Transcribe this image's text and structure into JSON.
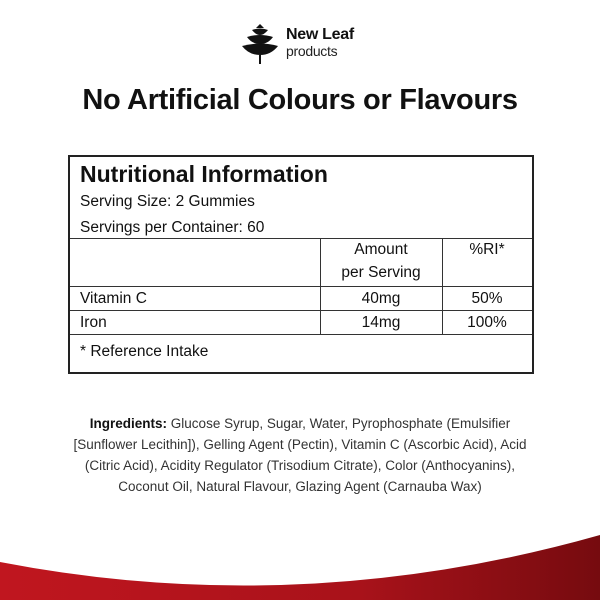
{
  "brand": {
    "name": "New Leaf",
    "sub": "products",
    "icon": "leaf-tree-icon"
  },
  "headline": "No Artificial Colours or Flavours",
  "nutrition": {
    "title": "Nutritional Information",
    "serving_size": "Serving Size: 2 Gummies",
    "servings_per_container": "Servings per Container: 60",
    "columns": [
      "Amount",
      "per Serving",
      "%RI*"
    ],
    "rows": [
      {
        "name": "Vitamin C",
        "amount": "40mg",
        "ri": "50%"
      },
      {
        "name": "Iron",
        "amount": "14mg",
        "ri": "100%"
      }
    ],
    "footnote": "* Reference Intake"
  },
  "ingredients": {
    "label": "Ingredients:",
    "text": " Glucose Syrup, Sugar, Water, Pyrophosphate (Emulsifier [Sunflower Lecithin]), Gelling Agent (Pectin), Vitamin C (Ascorbic Acid), Acid (Citric Acid), Acidity Regulator (Trisodium Citrate), Color (Anthocyanins), Coconut Oil, Natural Flavour, Glazing Agent (Carnauba Wax)"
  },
  "colors": {
    "accent": "#b3141c",
    "accent_dark": "#7a0c10"
  }
}
